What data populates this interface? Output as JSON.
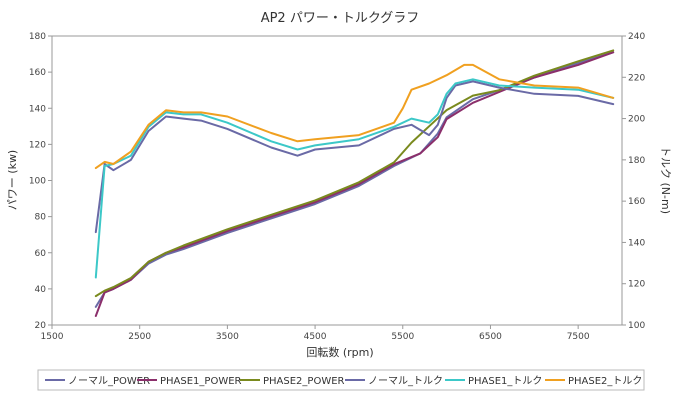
{
  "chart_data": {
    "type": "line",
    "title": "AP2 パワー・トルクグラフ",
    "xlabel": "回転数 (rpm)",
    "ylabel_left": "パワー (kw)",
    "ylabel_right": "トルク (N-m)",
    "xlim": [
      1500,
      8000
    ],
    "ylim_left": [
      20,
      180
    ],
    "ylim_right": [
      100,
      240
    ],
    "x_ticks": [
      1500,
      2500,
      3500,
      4500,
      5500,
      6500,
      7500
    ],
    "y_left_ticks": [
      20,
      40,
      60,
      80,
      100,
      120,
      140,
      160,
      180
    ],
    "y_right_ticks": [
      100,
      120,
      140,
      160,
      180,
      200,
      220,
      240
    ],
    "grid": false,
    "legend_position": "bottom",
    "series": [
      {
        "name": "ノーマル_POWER",
        "axis": "left",
        "color": "#6a6aa6",
        "x": [
          2000,
          2100,
          2200,
          2400,
          2600,
          2800,
          3000,
          3500,
          4000,
          4500,
          5000,
          5400,
          5700,
          5900,
          6000,
          6300,
          6600,
          7000,
          7500,
          7900
        ],
        "y": [
          30,
          38,
          40,
          45,
          54,
          59,
          62,
          71,
          79,
          87,
          97,
          108,
          115,
          126,
          135,
          145,
          150,
          157,
          165,
          171
        ]
      },
      {
        "name": "PHASE1_POWER",
        "axis": "left",
        "color": "#8b2f6b",
        "x": [
          2000,
          2100,
          2200,
          2400,
          2600,
          2800,
          3000,
          3500,
          4000,
          4500,
          5000,
          5400,
          5700,
          5900,
          6000,
          6300,
          6600,
          7000,
          7500,
          7900
        ],
        "y": [
          25,
          38,
          40,
          45,
          55,
          60,
          63,
          72,
          80,
          88,
          98,
          109,
          115,
          124,
          134,
          143,
          149,
          157,
          164,
          171
        ]
      },
      {
        "name": "PHASE2_POWER",
        "axis": "left",
        "color": "#7a8a1e",
        "x": [
          2000,
          2100,
          2200,
          2400,
          2600,
          2800,
          3000,
          3500,
          4000,
          4500,
          5000,
          5400,
          5600,
          5800,
          6000,
          6300,
          6600,
          7000,
          7500,
          7900
        ],
        "y": [
          36,
          39,
          41,
          46,
          55,
          60,
          64,
          73,
          81,
          89,
          99,
          110,
          121,
          130,
          139,
          147,
          150,
          158,
          166,
          172
        ]
      },
      {
        "name": "ノーマル_トルク",
        "axis": "right",
        "color": "#6a6aa6",
        "x": [
          2000,
          2100,
          2200,
          2400,
          2600,
          2800,
          3000,
          3200,
          3500,
          4000,
          4300,
          4500,
          5000,
          5400,
          5600,
          5800,
          5900,
          6000,
          6100,
          6300,
          6600,
          7000,
          7500,
          7900
        ],
        "y": [
          145,
          178,
          175,
          180,
          194,
          201,
          200,
          199,
          195,
          186,
          182,
          185,
          187,
          195,
          197,
          192,
          197,
          210,
          216,
          218,
          215,
          212,
          211,
          207
        ]
      },
      {
        "name": "PHASE1_トルク",
        "axis": "right",
        "color": "#3cc8c8",
        "x": [
          2000,
          2100,
          2200,
          2400,
          2600,
          2800,
          3000,
          3200,
          3500,
          4000,
          4300,
          4500,
          5000,
          5400,
          5600,
          5800,
          5900,
          6000,
          6100,
          6300,
          6600,
          7000,
          7500,
          7900
        ],
        "y": [
          123,
          177,
          178,
          182,
          196,
          203,
          202,
          202,
          198,
          189,
          185,
          187,
          190,
          196,
          200,
          198,
          202,
          212,
          217,
          219,
          216,
          215,
          214,
          210
        ]
      },
      {
        "name": "PHASE2_トルク",
        "axis": "right",
        "color": "#f0a020",
        "x": [
          2000,
          2100,
          2200,
          2400,
          2600,
          2800,
          3000,
          3200,
          3500,
          4000,
          4300,
          4500,
          5000,
          5400,
          5500,
          5600,
          5800,
          6000,
          6200,
          6300,
          6600,
          7000,
          7500,
          7900
        ],
        "y": [
          176,
          179,
          178,
          184,
          197,
          204,
          203,
          203,
          201,
          193,
          189,
          190,
          192,
          198,
          205,
          214,
          217,
          221,
          226,
          226,
          219,
          216,
          215,
          210
        ]
      }
    ]
  }
}
